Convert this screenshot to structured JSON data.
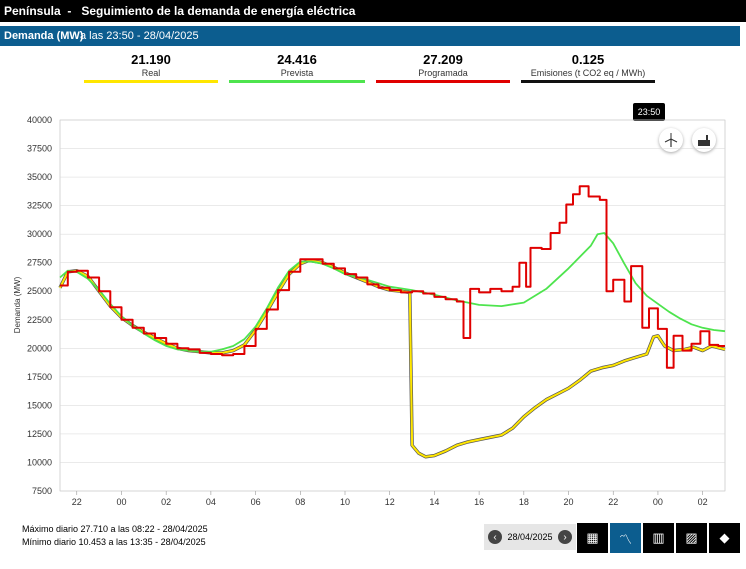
{
  "header": {
    "title": "Península  -   Seguimiento de la demanda de energía eléctrica"
  },
  "subheader": {
    "label": "Demanda (MW)",
    "time": "a las 23:50 - 28/04/2025"
  },
  "kpis": [
    {
      "value": "21.190",
      "label": "Real",
      "color": "#ffe600"
    },
    {
      "value": "24.416",
      "label": "Prevista",
      "color": "#4ee44e"
    },
    {
      "value": "27.209",
      "label": "Programada",
      "color": "#e00000"
    },
    {
      "value": "0.125",
      "label": "Emisiones (t CO2 eq / MWh)",
      "color": "#111111"
    }
  ],
  "tooltip": "23:50",
  "icons": {
    "wind": "wind-turbine-icon",
    "factory": "factory-icon"
  },
  "footer": {
    "max": "Máximo diario 27.710 a las 08:22 - 28/04/2025",
    "min": "Mínimo diario 10.453 a las 13:35 - 28/04/2025"
  },
  "date_picker": {
    "value": "28/04/2025",
    "prev": "‹",
    "next": "›"
  },
  "view_buttons": [
    {
      "name": "table-view-icon",
      "glyph": "▦"
    },
    {
      "name": "line-chart-view-icon",
      "glyph": "〽"
    },
    {
      "name": "list-view-icon",
      "glyph": "▥"
    },
    {
      "name": "area-chart-view-icon",
      "glyph": "▨"
    },
    {
      "name": "spain-map-icon",
      "glyph": "◆"
    }
  ],
  "chart_data": {
    "type": "line",
    "ylabel": "Demanda (MW)",
    "ylim": [
      7500,
      40000
    ],
    "yticks": [
      7500,
      10000,
      12500,
      15000,
      17500,
      20000,
      22500,
      25000,
      27500,
      30000,
      32500,
      35000,
      37500,
      40000
    ],
    "xlim": [
      21.25,
      51.0
    ],
    "xticks": [
      {
        "h": 22,
        "label": "22"
      },
      {
        "h": 24,
        "label": "00"
      },
      {
        "h": 26,
        "label": "02"
      },
      {
        "h": 28,
        "label": "04"
      },
      {
        "h": 30,
        "label": "06"
      },
      {
        "h": 32,
        "label": "08"
      },
      {
        "h": 34,
        "label": "10"
      },
      {
        "h": 36,
        "label": "12"
      },
      {
        "h": 38,
        "label": "14"
      },
      {
        "h": 40,
        "label": "16"
      },
      {
        "h": 42,
        "label": "18"
      },
      {
        "h": 44,
        "label": "20"
      },
      {
        "h": 46,
        "label": "22"
      },
      {
        "h": 48,
        "label": "00"
      },
      {
        "h": 50,
        "label": "02"
      }
    ],
    "series": [
      {
        "name": "Real",
        "color": "#ffe600",
        "step": false,
        "points": [
          [
            21.25,
            25300
          ],
          [
            21.6,
            26700
          ],
          [
            22,
            26800
          ],
          [
            22.5,
            26300
          ],
          [
            23,
            25000
          ],
          [
            23.5,
            23700
          ],
          [
            24,
            22700
          ],
          [
            24.5,
            22000
          ],
          [
            25,
            21400
          ],
          [
            25.5,
            20900
          ],
          [
            26,
            20400
          ],
          [
            26.5,
            20000
          ],
          [
            27,
            19800
          ],
          [
            27.5,
            19700
          ],
          [
            28,
            19600
          ],
          [
            28.5,
            19600
          ],
          [
            29,
            19800
          ],
          [
            29.5,
            20300
          ],
          [
            30,
            21600
          ],
          [
            30.5,
            23200
          ],
          [
            31,
            24900
          ],
          [
            31.5,
            26500
          ],
          [
            32,
            27400
          ],
          [
            32.4,
            27700
          ],
          [
            33,
            27500
          ],
          [
            33.5,
            27100
          ],
          [
            34,
            26600
          ],
          [
            34.5,
            26200
          ],
          [
            35,
            25800
          ],
          [
            35.5,
            25400
          ],
          [
            36,
            25100
          ],
          [
            36.5,
            25000
          ],
          [
            36.9,
            24900
          ],
          [
            37,
            11500
          ],
          [
            37.3,
            10800
          ],
          [
            37.6,
            10500
          ],
          [
            38,
            10600
          ],
          [
            38.5,
            11000
          ],
          [
            39,
            11500
          ],
          [
            39.5,
            11800
          ],
          [
            40,
            12000
          ],
          [
            40.5,
            12200
          ],
          [
            41,
            12400
          ],
          [
            41.5,
            13000
          ],
          [
            42,
            14000
          ],
          [
            42.5,
            14800
          ],
          [
            43,
            15500
          ],
          [
            43.5,
            16000
          ],
          [
            44,
            16500
          ],
          [
            44.5,
            17200
          ],
          [
            45,
            18000
          ],
          [
            45.5,
            18300
          ],
          [
            46,
            18500
          ],
          [
            46.5,
            18900
          ],
          [
            47,
            19200
          ],
          [
            47.5,
            19500
          ],
          [
            47.8,
            21000
          ],
          [
            48,
            21100
          ],
          [
            48.3,
            20200
          ],
          [
            48.7,
            19800
          ],
          [
            49.2,
            19900
          ],
          [
            49.6,
            20100
          ],
          [
            50,
            19800
          ],
          [
            50.4,
            20200
          ],
          [
            51,
            19900
          ]
        ]
      },
      {
        "name": "Prevista",
        "color": "#4ee44e",
        "step": false,
        "points": [
          [
            21.25,
            26200
          ],
          [
            21.6,
            26800
          ],
          [
            22,
            26700
          ],
          [
            22.5,
            26100
          ],
          [
            23,
            25100
          ],
          [
            23.5,
            23900
          ],
          [
            24,
            22800
          ],
          [
            24.5,
            22000
          ],
          [
            25,
            21300
          ],
          [
            25.5,
            20700
          ],
          [
            26,
            20200
          ],
          [
            26.5,
            19900
          ],
          [
            27,
            19800
          ],
          [
            27.5,
            19700
          ],
          [
            28,
            19700
          ],
          [
            28.5,
            19900
          ],
          [
            29,
            20200
          ],
          [
            29.5,
            20800
          ],
          [
            30,
            21900
          ],
          [
            30.5,
            23500
          ],
          [
            31,
            25300
          ],
          [
            31.5,
            26800
          ],
          [
            32,
            27600
          ],
          [
            32.5,
            27600
          ],
          [
            33,
            27400
          ],
          [
            33.5,
            27000
          ],
          [
            34,
            26500
          ],
          [
            35,
            26000
          ],
          [
            36,
            25400
          ],
          [
            37,
            25100
          ],
          [
            38,
            24700
          ],
          [
            39,
            24200
          ],
          [
            40,
            23800
          ],
          [
            41,
            23700
          ],
          [
            42,
            24000
          ],
          [
            43,
            25200
          ],
          [
            44,
            27000
          ],
          [
            44.5,
            28000
          ],
          [
            45,
            29000
          ],
          [
            45.3,
            30000
          ],
          [
            45.6,
            30100
          ],
          [
            46,
            29200
          ],
          [
            46.5,
            27400
          ],
          [
            47,
            25700
          ],
          [
            47.5,
            24600
          ],
          [
            48,
            23900
          ],
          [
            48.5,
            23200
          ],
          [
            49,
            22600
          ],
          [
            49.5,
            22100
          ],
          [
            50,
            21800
          ],
          [
            50.5,
            21600
          ],
          [
            51,
            21500
          ]
        ]
      },
      {
        "name": "Programada",
        "color": "#e00000",
        "step": true,
        "points": [
          [
            21.25,
            25500
          ],
          [
            21.6,
            26700
          ],
          [
            22,
            26800
          ],
          [
            22.5,
            26200
          ],
          [
            23,
            25000
          ],
          [
            23.5,
            23600
          ],
          [
            24,
            22500
          ],
          [
            24.5,
            21800
          ],
          [
            25,
            21300
          ],
          [
            25.5,
            20900
          ],
          [
            26,
            20400
          ],
          [
            26.5,
            20000
          ],
          [
            27,
            19900
          ],
          [
            27.5,
            19600
          ],
          [
            28,
            19500
          ],
          [
            28.5,
            19400
          ],
          [
            29,
            19500
          ],
          [
            29.5,
            20200
          ],
          [
            30,
            21700
          ],
          [
            30.5,
            23400
          ],
          [
            31,
            25100
          ],
          [
            31.5,
            26700
          ],
          [
            32,
            27800
          ],
          [
            32.5,
            27800
          ],
          [
            33,
            27400
          ],
          [
            33.5,
            27000
          ],
          [
            34,
            26500
          ],
          [
            34.5,
            26200
          ],
          [
            35,
            25600
          ],
          [
            35.5,
            25300
          ],
          [
            36,
            25100
          ],
          [
            36.5,
            24900
          ],
          [
            37,
            25000
          ],
          [
            37.5,
            24800
          ],
          [
            38,
            24500
          ],
          [
            38.5,
            24300
          ],
          [
            39,
            24100
          ],
          [
            39.3,
            20900
          ],
          [
            39.6,
            25200
          ],
          [
            40,
            24900
          ],
          [
            40.5,
            25200
          ],
          [
            41,
            25000
          ],
          [
            41.5,
            25400
          ],
          [
            41.8,
            27500
          ],
          [
            42.1,
            25400
          ],
          [
            42.3,
            28800
          ],
          [
            42.8,
            28700
          ],
          [
            43.2,
            30100
          ],
          [
            43.6,
            31000
          ],
          [
            43.9,
            32600
          ],
          [
            44.2,
            33500
          ],
          [
            44.5,
            34200
          ],
          [
            44.9,
            33300
          ],
          [
            45.4,
            33000
          ],
          [
            45.7,
            25000
          ],
          [
            46,
            26000
          ],
          [
            46.5,
            24100
          ],
          [
            46.8,
            27200
          ],
          [
            47.3,
            21800
          ],
          [
            47.6,
            23500
          ],
          [
            48,
            21700
          ],
          [
            48.4,
            18300
          ],
          [
            48.7,
            21100
          ],
          [
            49.1,
            19800
          ],
          [
            49.5,
            20400
          ],
          [
            49.9,
            21500
          ],
          [
            50.3,
            20300
          ],
          [
            50.7,
            20200
          ],
          [
            51,
            20200
          ]
        ]
      }
    ]
  }
}
